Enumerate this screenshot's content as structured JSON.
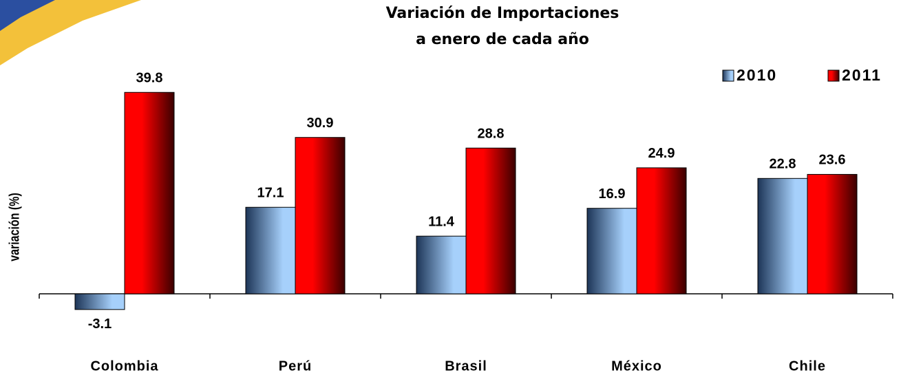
{
  "chart_data": {
    "type": "bar",
    "title": [
      "Variación de Importaciones",
      "a enero de cada año"
    ],
    "ylabel": "variación (%)",
    "categories": [
      "Colombia",
      "Perú",
      "Brasil",
      "México",
      "Chile"
    ],
    "series": [
      {
        "name": "2010",
        "color": "#a6d0fb",
        "values": [
          -3.1,
          17.1,
          11.4,
          16.9,
          22.8
        ]
      },
      {
        "name": "2011",
        "color": "#ff0000",
        "values": [
          39.8,
          30.9,
          28.8,
          24.9,
          23.6
        ]
      }
    ],
    "ylim": [
      -10,
      45
    ],
    "legend": "top-right"
  }
}
